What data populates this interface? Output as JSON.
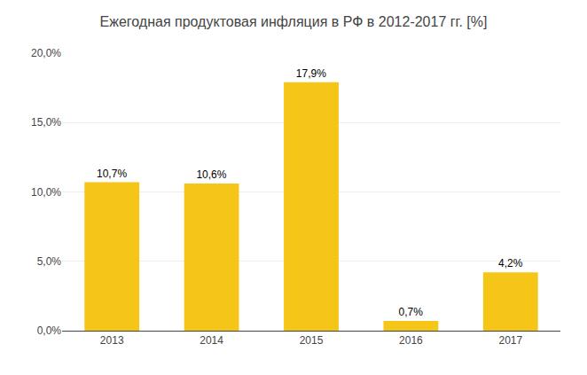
{
  "chart_data": {
    "type": "bar",
    "title": "Ежегодная продуктовая инфляция в РФ в 2012-2017 гг. [%]",
    "categories": [
      "2013",
      "2014",
      "2015",
      "2016",
      "2017"
    ],
    "values": [
      10.7,
      10.6,
      17.9,
      0.7,
      4.2
    ],
    "value_labels": [
      "10,7%",
      "10,6%",
      "17,9%",
      "0,7%",
      "4,2%"
    ],
    "color": "#F5C518",
    "ylim": [
      0,
      20
    ],
    "yticks": [
      {
        "value": 0,
        "label": "0,0%"
      },
      {
        "value": 5,
        "label": "5,0%"
      },
      {
        "value": 10,
        "label": "10,0%"
      },
      {
        "value": 15,
        "label": "15,0%"
      },
      {
        "value": 20,
        "label": "20,0%"
      }
    ],
    "grid": true,
    "data_labels": true
  }
}
